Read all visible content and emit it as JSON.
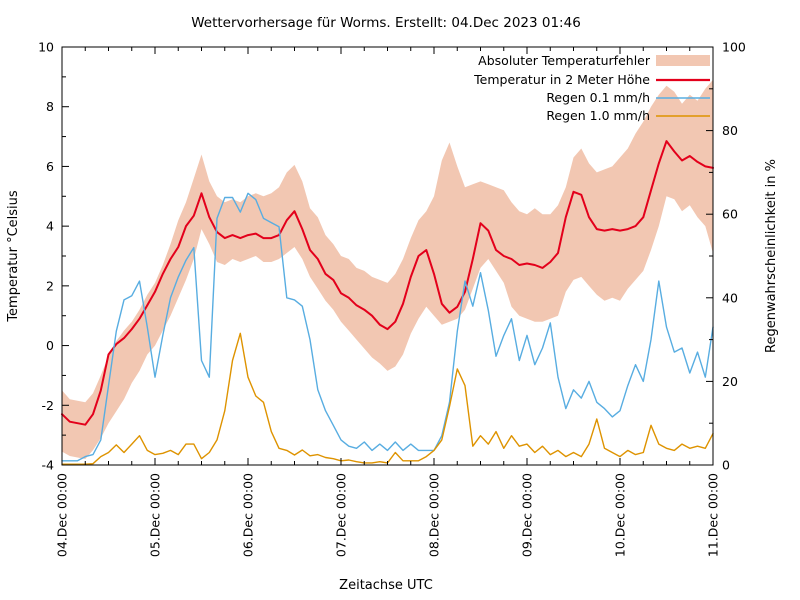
{
  "title": "Wettervorhersage für Worms. Erstellt: 04.Dec 2023 01:46",
  "axes": {
    "x_label": "Zeitachse UTC",
    "y_left_label": "Temperatur °Celsius",
    "y_right_label": "Regenwahrscheinlichkeit in %",
    "x_tick_labels": [
      "04.Dec 00:00",
      "05.Dec 00:00",
      "06.Dec 00:00",
      "07.Dec 00:00",
      "08.Dec 00:00",
      "09.Dec 00:00",
      "10.Dec 00:00",
      "11.Dec 00:00"
    ],
    "y_left_tick_labels": [
      "-4",
      "-2",
      "0",
      "2",
      "4",
      "6",
      "8",
      "10"
    ],
    "y_right_tick_labels": [
      "0",
      "20",
      "40",
      "60",
      "80",
      "100"
    ]
  },
  "legend": [
    {
      "label": "Absoluter Temperaturfehler",
      "swatch": "band",
      "color": "#f2c7b2"
    },
    {
      "label": "Temperatur in 2 Meter Höhe",
      "swatch": "line",
      "color": "#e3001b"
    },
    {
      "label": "Regen 0.1 mm/h",
      "swatch": "line",
      "color": "#58ade1"
    },
    {
      "label": "Regen 1.0 mm/h",
      "swatch": "line",
      "color": "#de9300"
    }
  ],
  "colors": {
    "background": "#ffffff",
    "axis": "#000000",
    "error_band": "#f2c7b2",
    "temperature": "#e3001b",
    "rain_01": "#58ade1",
    "rain_10": "#de9300"
  },
  "chart_data": {
    "type": "line",
    "title": "Wettervorhersage für Worms. Erstellt: 04.Dec 2023 01:46",
    "xlabel": "Zeitachse UTC",
    "x_unit": "hours since 04.Dec 2023 00:00 UTC",
    "x_step_hours": 2,
    "x_range_hours": [
      0,
      168
    ],
    "x_major_tick_hours": 24,
    "x_minor_tick_hours": 6,
    "grid": false,
    "legend_position": "top-right-inside",
    "y_left": {
      "label": "Temperatur °Celsius",
      "range": [
        -4,
        10
      ],
      "major_step": 2,
      "minor_step": 1
    },
    "y_right": {
      "label": "Regenwahrscheinlichkeit in %",
      "range": [
        0,
        100
      ],
      "major_step": 20,
      "minor_step": 10
    },
    "series": [
      {
        "name": "Absoluter Temperaturfehler",
        "kind": "band",
        "axis": "left",
        "color": "#f2c7b2",
        "upper": [
          -1.5,
          -1.8,
          -1.85,
          -1.9,
          -1.6,
          -1.0,
          -0.35,
          0.15,
          0.5,
          0.8,
          1.2,
          1.7,
          2.1,
          2.7,
          3.4,
          4.2,
          4.8,
          5.6,
          6.4,
          5.5,
          5.0,
          4.8,
          4.9,
          4.8,
          5.0,
          5.1,
          5.0,
          5.1,
          5.3,
          5.8,
          6.05,
          5.5,
          4.6,
          4.3,
          3.7,
          3.4,
          3.0,
          2.9,
          2.6,
          2.5,
          2.3,
          2.2,
          2.1,
          2.4,
          2.9,
          3.6,
          4.2,
          4.5,
          5.0,
          6.2,
          6.8,
          6.0,
          5.3,
          5.4,
          5.5,
          5.4,
          5.3,
          5.2,
          4.8,
          4.5,
          4.4,
          4.6,
          4.4,
          4.4,
          4.7,
          5.3,
          6.3,
          6.6,
          6.1,
          5.8,
          5.9,
          6.0,
          6.3,
          6.6,
          7.1,
          7.5,
          8.0,
          8.4,
          8.7,
          8.5,
          8.1,
          8.4,
          8.2,
          8.6,
          8.9
        ],
        "lower": [
          -3.55,
          -3.7,
          -3.75,
          -3.8,
          -3.5,
          -3.1,
          -2.6,
          -2.2,
          -1.8,
          -1.25,
          -0.85,
          -0.3,
          0.0,
          0.5,
          1.0,
          1.6,
          2.2,
          2.9,
          3.9,
          3.4,
          2.8,
          2.7,
          2.9,
          2.8,
          2.9,
          3.0,
          2.8,
          2.8,
          2.9,
          3.1,
          3.3,
          2.9,
          2.3,
          1.9,
          1.5,
          1.2,
          0.8,
          0.5,
          0.2,
          -0.1,
          -0.4,
          -0.6,
          -0.85,
          -0.7,
          -0.3,
          0.4,
          0.9,
          1.3,
          1.0,
          0.7,
          0.8,
          0.9,
          1.2,
          1.9,
          2.6,
          2.9,
          2.5,
          2.1,
          1.3,
          1.0,
          0.9,
          0.8,
          0.8,
          0.9,
          1.0,
          1.8,
          2.2,
          2.3,
          2.0,
          1.7,
          1.5,
          1.6,
          1.5,
          1.9,
          2.2,
          2.5,
          3.2,
          4.0,
          5.0,
          4.9,
          4.5,
          4.7,
          4.3,
          4.0,
          3.1
        ]
      },
      {
        "name": "Temperatur in 2 Meter Höhe",
        "kind": "line",
        "axis": "left",
        "color": "#e3001b",
        "values": [
          -2.3,
          -2.55,
          -2.6,
          -2.65,
          -2.3,
          -1.5,
          -0.3,
          0.05,
          0.25,
          0.55,
          0.9,
          1.35,
          1.8,
          2.4,
          2.9,
          3.3,
          4.0,
          4.35,
          5.1,
          4.3,
          3.8,
          3.6,
          3.7,
          3.6,
          3.7,
          3.75,
          3.6,
          3.6,
          3.7,
          4.2,
          4.5,
          3.9,
          3.2,
          2.9,
          2.4,
          2.2,
          1.75,
          1.6,
          1.35,
          1.2,
          1.0,
          0.7,
          0.55,
          0.8,
          1.4,
          2.3,
          3.0,
          3.2,
          2.4,
          1.4,
          1.1,
          1.3,
          1.8,
          2.9,
          4.1,
          3.85,
          3.2,
          3.0,
          2.9,
          2.7,
          2.75,
          2.7,
          2.6,
          2.8,
          3.1,
          4.3,
          5.15,
          5.05,
          4.3,
          3.9,
          3.85,
          3.9,
          3.85,
          3.9,
          4.0,
          4.3,
          5.2,
          6.1,
          6.85,
          6.5,
          6.2,
          6.35,
          6.15,
          6.0,
          5.95
        ]
      },
      {
        "name": "Regen 0.1 mm/h",
        "kind": "line",
        "axis": "right",
        "color": "#58ade1",
        "values": [
          1,
          1,
          1,
          2,
          2.5,
          6,
          19,
          32,
          39.5,
          40.5,
          44,
          33,
          21,
          31,
          40,
          45,
          49,
          52,
          25,
          21,
          59,
          64,
          64,
          60.5,
          65,
          63.5,
          59,
          58,
          57,
          40,
          39.5,
          38,
          30,
          18,
          13,
          9.5,
          6,
          4.5,
          4,
          5.5,
          3.5,
          5,
          3.5,
          5.5,
          3.5,
          5,
          3.5,
          3.5,
          3.5,
          7,
          15,
          32,
          44,
          38,
          46,
          37,
          26,
          31,
          35,
          25,
          31,
          24,
          28,
          34,
          21,
          13.5,
          18,
          16,
          20,
          15,
          13.5,
          11.5,
          13,
          19,
          24,
          20,
          30,
          44,
          33,
          27,
          28,
          22,
          27,
          21,
          33
        ]
      },
      {
        "name": "Regen 1.0 mm/h",
        "kind": "line",
        "axis": "right",
        "color": "#de9300",
        "values": [
          0.2,
          0.2,
          0.2,
          0.2,
          0.3,
          2,
          3,
          4.8,
          3,
          5,
          7,
          3.5,
          2.5,
          2.8,
          3.5,
          2.5,
          5,
          5,
          1.5,
          3,
          6,
          13,
          25,
          31.5,
          21,
          16.5,
          15,
          8,
          4,
          3.5,
          2.4,
          3.6,
          2.2,
          2.5,
          1.8,
          1.5,
          1,
          1.2,
          0.8,
          0.5,
          0.5,
          0.8,
          0.5,
          3,
          1,
          1,
          1,
          2,
          3.5,
          6,
          14,
          23,
          19,
          4.5,
          7,
          5,
          8,
          4,
          7,
          4.5,
          5,
          3,
          4.5,
          2.5,
          3.5,
          2,
          3,
          2,
          5,
          11,
          4,
          3,
          2,
          3.5,
          2.5,
          3,
          9.5,
          5,
          4,
          3.5,
          5,
          4,
          4.5,
          4,
          7.5
        ]
      }
    ]
  }
}
